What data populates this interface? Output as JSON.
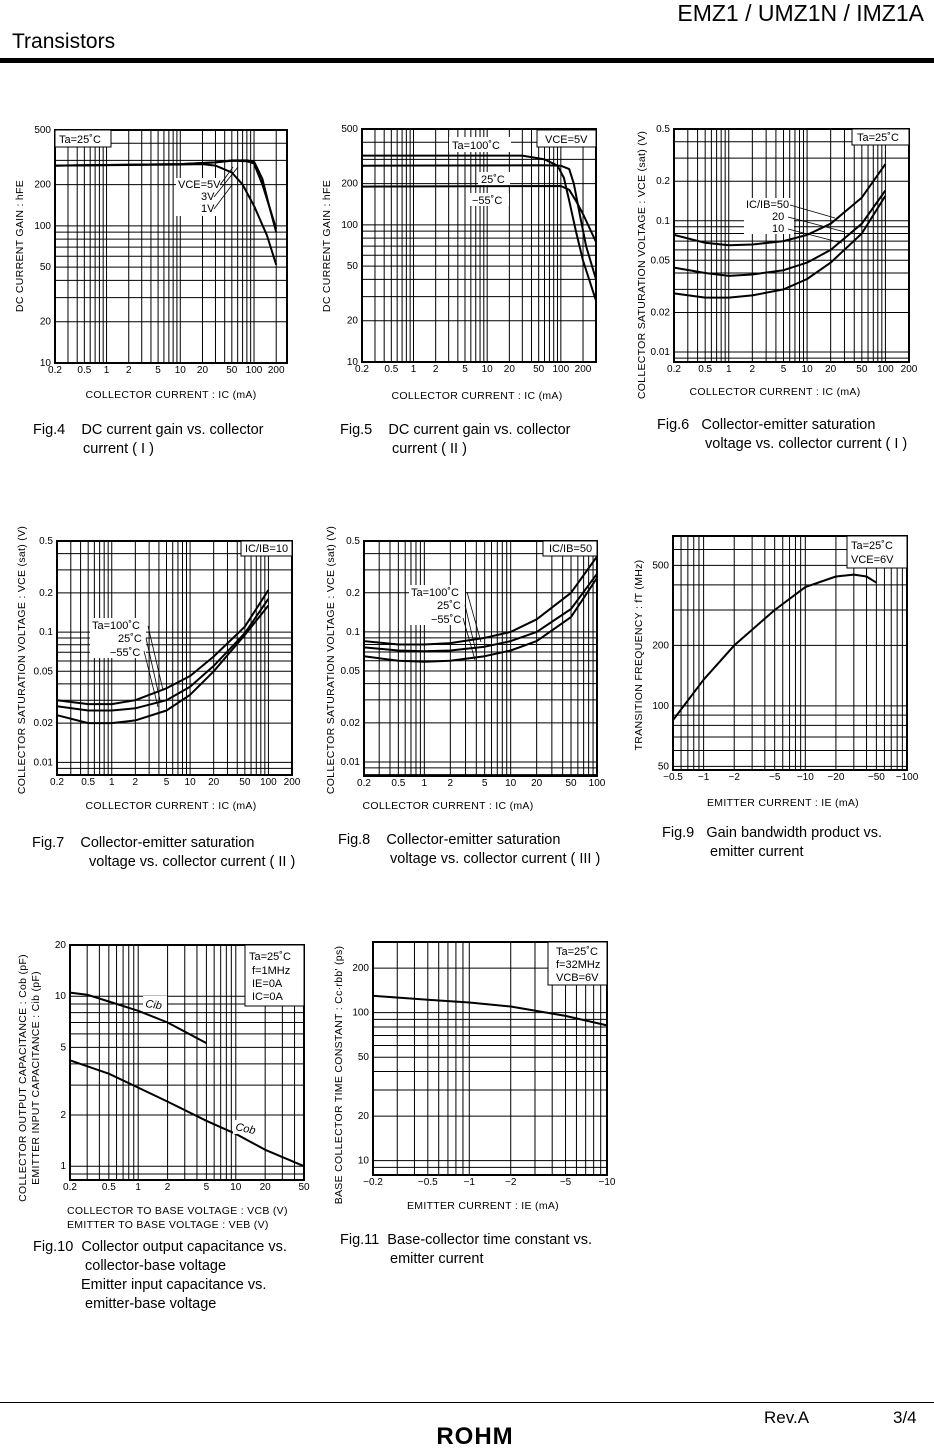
{
  "header": {
    "doc_title": "EMZ1 / UMZ1N / IMZ1A",
    "section": "Transistors"
  },
  "footer": {
    "revision": "Rev.A",
    "page": "3/4",
    "logo": "ROHM"
  },
  "chart_data": [
    {
      "type": "line",
      "xscale": "log",
      "yscale": "log",
      "grid": true,
      "xlim": [
        0.2,
        280
      ],
      "ylim": [
        10,
        500
      ],
      "xlabel": "COLLECTOR  CURRENT : IC (mA)",
      "ylabel": "DC  CURRENT  GAIN : hFE",
      "x_ticks": [
        "0.2",
        "0.5",
        "1",
        "2",
        "5",
        "10",
        "20",
        "50",
        "100",
        "200"
      ],
      "y_ticks": [
        "10",
        "20",
        "50",
        "100",
        "200",
        "500"
      ],
      "conditions": [
        "Ta=25˚C"
      ],
      "series": [
        {
          "name": "VCE=5V",
          "x": [
            0.2,
            1,
            10,
            30,
            50,
            80,
            100,
            130,
            160,
            200
          ],
          "y": [
            275,
            278,
            282,
            290,
            300,
            300,
            295,
            220,
            140,
            95
          ]
        },
        {
          "name": "3V",
          "x": [
            0.2,
            10,
            30,
            50,
            80,
            100,
            130,
            160,
            200
          ],
          "y": [
            275,
            282,
            290,
            298,
            296,
            285,
            200,
            140,
            90
          ]
        },
        {
          "name": "1V",
          "x": [
            0.2,
            10,
            20,
            30,
            50,
            70,
            100,
            150,
            200
          ],
          "y": [
            275,
            280,
            282,
            275,
            245,
            200,
            140,
            85,
            52
          ]
        }
      ],
      "caption": {
        "number": "Fig.4",
        "lines": [
          "DC current gain vs. collector",
          "current ( I )"
        ]
      }
    },
    {
      "type": "line",
      "xscale": "log",
      "yscale": "log",
      "grid": true,
      "xlim": [
        0.2,
        300
      ],
      "ylim": [
        10,
        500
      ],
      "xlabel": "COLLECTOR  CURRENT : IC (mA)",
      "ylabel": "DC  CURRENT  GAIN : hFE",
      "x_ticks": [
        "0.2",
        "0.5",
        "1",
        "2",
        "5",
        "10",
        "20",
        "50",
        "100",
        "200"
      ],
      "y_ticks": [
        "10",
        "20",
        "50",
        "100",
        "200",
        "500"
      ],
      "conditions": [
        "VCE=5V"
      ],
      "series": [
        {
          "name": "Ta=100˚C",
          "x": [
            0.2,
            30,
            60,
            90,
            110,
            130,
            160,
            200,
            300
          ],
          "y": [
            320,
            320,
            300,
            270,
            220,
            150,
            90,
            55,
            28
          ]
        },
        {
          "name": "25˚C",
          "x": [
            0.2,
            60,
            100,
            130,
            150,
            180,
            220,
            300
          ],
          "y": [
            270,
            272,
            270,
            255,
            200,
            120,
            70,
            40
          ]
        },
        {
          "name": "−55˚C",
          "x": [
            0.2,
            100,
            130,
            160,
            200,
            300
          ],
          "y": [
            190,
            192,
            180,
            150,
            120,
            75
          ]
        }
      ],
      "caption": {
        "number": "Fig.5",
        "lines": [
          "DC current gain vs. collector",
          "current ( II )"
        ]
      }
    },
    {
      "type": "line",
      "xscale": "log",
      "yscale": "log",
      "grid": true,
      "xlim": [
        0.2,
        200
      ],
      "ylim": [
        0.0084,
        0.5
      ],
      "xlabel": "COLLECTOR  CURRENT : IC (mA)",
      "ylabel": "COLLECTOR  SATURATION  VOLTAGE : VCE (sat) (V)",
      "x_ticks": [
        "0.2",
        "0.5",
        "1",
        "2",
        "5",
        "10",
        "20",
        "50",
        "100",
        "200"
      ],
      "y_ticks": [
        "0.01",
        "0.02",
        "0.05",
        "0.1",
        "0.2",
        "0.5"
      ],
      "conditions": [
        "Ta=25˚C"
      ],
      "series": [
        {
          "name": "IC/IB=50",
          "x": [
            0.2,
            0.5,
            1,
            2,
            5,
            10,
            20,
            50,
            100
          ],
          "y": [
            0.078,
            0.068,
            0.065,
            0.066,
            0.07,
            0.078,
            0.095,
            0.15,
            0.27
          ]
        },
        {
          "name": "20",
          "x": [
            0.2,
            0.5,
            1,
            2,
            5,
            10,
            20,
            50,
            100
          ],
          "y": [
            0.044,
            0.04,
            0.038,
            0.039,
            0.042,
            0.048,
            0.06,
            0.095,
            0.17
          ]
        },
        {
          "name": "10",
          "x": [
            0.2,
            0.5,
            1,
            2,
            5,
            10,
            20,
            50,
            100
          ],
          "y": [
            0.028,
            0.026,
            0.026,
            0.027,
            0.03,
            0.036,
            0.048,
            0.08,
            0.155
          ]
        }
      ],
      "caption": {
        "number": "Fig.6",
        "lines": [
          "Collector-emitter saturation",
          "voltage vs. collector current ( I )"
        ]
      }
    },
    {
      "type": "line",
      "xscale": "log",
      "yscale": "log",
      "grid": true,
      "xlim": [
        0.2,
        200
      ],
      "ylim": [
        0.008,
        0.5
      ],
      "xlabel": "COLLECTOR  CURRENT : IC (mA)",
      "ylabel": "COLLECTOR  SATURATION  VOLTAGE : VCE (sat) (V)",
      "x_ticks": [
        "0.2",
        "0.5",
        "1",
        "2",
        "5",
        "10",
        "20",
        "50",
        "100",
        "200"
      ],
      "y_ticks": [
        "0.01",
        "0.02",
        "0.05",
        "0.1",
        "0.2",
        "0.5"
      ],
      "conditions": [
        "IC/IB=10"
      ],
      "series": [
        {
          "name": "Ta=100˚C",
          "x": [
            0.2,
            0.5,
            1,
            2,
            5,
            10,
            20,
            50,
            100
          ],
          "y": [
            0.03,
            0.028,
            0.028,
            0.03,
            0.037,
            0.046,
            0.065,
            0.11,
            0.21
          ]
        },
        {
          "name": "25˚C",
          "x": [
            0.2,
            0.5,
            1,
            2,
            5,
            10,
            20,
            50,
            100
          ],
          "y": [
            0.027,
            0.025,
            0.025,
            0.026,
            0.03,
            0.038,
            0.055,
            0.098,
            0.18
          ]
        },
        {
          "name": "−55˚C",
          "x": [
            0.2,
            0.5,
            1,
            2,
            5,
            10,
            20,
            50,
            100
          ],
          "y": [
            0.023,
            0.02,
            0.02,
            0.021,
            0.025,
            0.033,
            0.05,
            0.095,
            0.16
          ]
        }
      ],
      "caption": {
        "number": "Fig.7",
        "lines": [
          "Collector-emitter saturation",
          "voltage vs. collector current ( II )"
        ]
      }
    },
    {
      "type": "line",
      "xscale": "log",
      "yscale": "log",
      "grid": true,
      "xlim": [
        0.2,
        100
      ],
      "ylim": [
        0.0078,
        0.5
      ],
      "xlabel": "COLLECTOR  CURRENT : IC (mA)",
      "ylabel": "COLLECTOR  SATURATION  VOLTAGE : VCE (sat) (V)",
      "x_ticks": [
        "0.2",
        "0.5",
        "1",
        "2",
        "5",
        "10",
        "20",
        "50",
        "100"
      ],
      "y_ticks": [
        "0.01",
        "0.02",
        "0.05",
        "0.1",
        "0.2",
        "0.5"
      ],
      "conditions": [
        "IC/IB=50"
      ],
      "series": [
        {
          "name": "Ta=100˚C",
          "x": [
            0.2,
            0.5,
            1,
            2,
            5,
            10,
            20,
            50,
            100
          ],
          "y": [
            0.085,
            0.08,
            0.08,
            0.082,
            0.09,
            0.1,
            0.125,
            0.2,
            0.38
          ]
        },
        {
          "name": "25˚C",
          "x": [
            0.2,
            0.5,
            1,
            2,
            5,
            10,
            20,
            50,
            100
          ],
          "y": [
            0.076,
            0.072,
            0.071,
            0.072,
            0.077,
            0.085,
            0.1,
            0.15,
            0.28
          ]
        },
        {
          "name": "−55˚C",
          "x": [
            0.2,
            0.5,
            1,
            2,
            5,
            10,
            20,
            50,
            100
          ],
          "y": [
            0.065,
            0.06,
            0.059,
            0.06,
            0.065,
            0.072,
            0.085,
            0.13,
            0.26
          ]
        }
      ],
      "caption": {
        "number": "Fig.8",
        "lines": [
          "Collector-emitter saturation",
          "voltage vs. collector current ( III )"
        ]
      }
    },
    {
      "type": "line",
      "xscale": "log",
      "yscale": "log",
      "grid": true,
      "xlim": [
        -0.5,
        -100
      ],
      "ylim": [
        48,
        700
      ],
      "xlabel": "EMITTER  CURRENT : IE (mA)",
      "ylabel": "TRANSITION  FREQUENCY : fT (MHz)",
      "x_ticks": [
        "−0.5",
        "−1",
        "−2",
        "−5",
        "−10",
        "−20",
        "−50",
        "−100"
      ],
      "y_ticks": [
        "50",
        "100",
        "200",
        "500"
      ],
      "conditions": [
        "Ta=25˚C",
        "VCE=6V"
      ],
      "series": [
        {
          "x": [
            -0.5,
            -1,
            -2,
            -5,
            -10,
            -20,
            -30,
            -40,
            -50
          ],
          "y": [
            85,
            135,
            200,
            300,
            390,
            440,
            450,
            440,
            410
          ]
        }
      ],
      "caption": {
        "number": "Fig.9",
        "lines": [
          "Gain bandwidth product vs.",
          "emitter current"
        ]
      }
    },
    {
      "type": "line",
      "xscale": "log",
      "yscale": "log",
      "grid": true,
      "xlim": [
        0.2,
        50
      ],
      "ylim": [
        0.83,
        20
      ],
      "xlabel": "COLLECTOR  TO  BASE  VOLTAGE : VCB (V)",
      "xlabel2": "EMITTER  TO  BASE  VOLTAGE       : VEB (V)",
      "ylabel": "COLLECTOR OUTPUT CAPACITANCE : Cob (pF)",
      "ylabel2": "EMITTER  INPUT  CAPACITANCE     : Cib    (pF)",
      "x_ticks": [
        "0.2",
        "0.5",
        "1",
        "2",
        "5",
        "10",
        "20",
        "50"
      ],
      "y_ticks": [
        "1",
        "2",
        "5",
        "10",
        "20"
      ],
      "conditions": [
        "Ta=25˚C",
        "f=1MHz",
        "IE=0A",
        "IC=0A"
      ],
      "series": [
        {
          "name": "Cib",
          "x": [
            0.2,
            0.3,
            0.5,
            1,
            2,
            5
          ],
          "y": [
            10.5,
            10.2,
            9.3,
            8.2,
            7,
            5.3
          ]
        },
        {
          "name": "Cob",
          "x": [
            0.2,
            0.5,
            1,
            2,
            5,
            10,
            20,
            50
          ],
          "y": [
            4.2,
            3.5,
            2.9,
            2.4,
            1.85,
            1.55,
            1.25,
            1.0
          ]
        }
      ],
      "caption": {
        "number": "Fig.10",
        "lines": [
          "Collector output capacitance vs.",
          "collector-base voltage",
          "Emitter input capacitance vs.",
          "emitter-base voltage"
        ]
      }
    },
    {
      "type": "line",
      "xscale": "log",
      "yscale": "log",
      "grid": true,
      "xlim": [
        -0.2,
        -10
      ],
      "ylim": [
        8,
        300
      ],
      "xlabel": "EMITTER  CURRENT : IE (mA)",
      "ylabel": "BASE  COLLECTOR  TIME  CONSTANT : Cc·rbb' (ps)",
      "x_ticks": [
        "−0.2",
        "−0.5",
        "−1",
        "−2",
        "−5",
        "−10"
      ],
      "y_ticks": [
        "10",
        "20",
        "50",
        "100",
        "200"
      ],
      "conditions": [
        "Ta=25˚C",
        "f=32MHz",
        "VCB=6V"
      ],
      "series": [
        {
          "x": [
            -0.2,
            -0.5,
            -1,
            -2,
            -5,
            -10
          ],
          "y": [
            130,
            122,
            117,
            110,
            95,
            82
          ]
        }
      ],
      "caption": {
        "number": "Fig.11",
        "lines": [
          "Base-collector time constant vs.",
          "emitter current"
        ]
      }
    }
  ]
}
